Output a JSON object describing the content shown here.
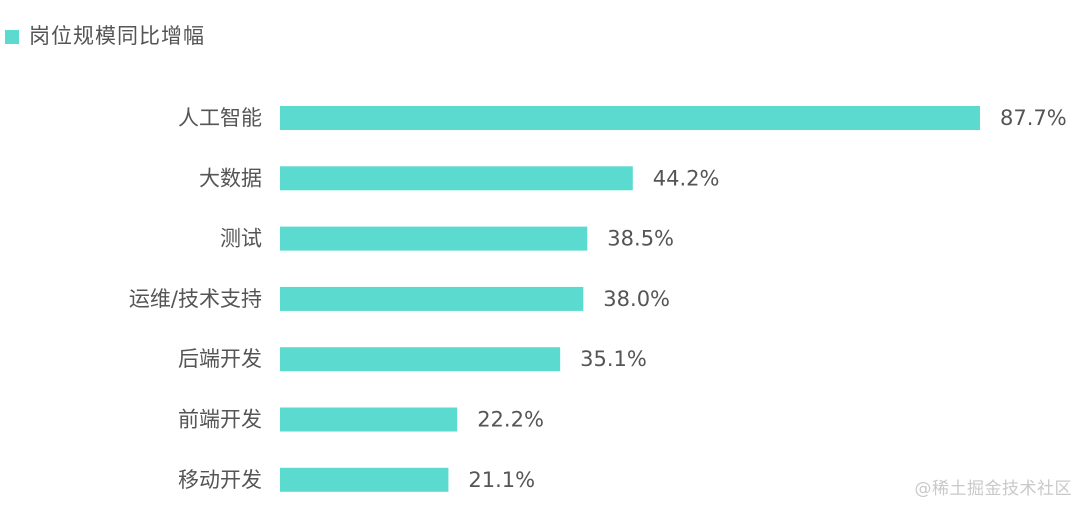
{
  "chart_data": {
    "type": "bar",
    "orientation": "horizontal",
    "categories": [
      "人工智能",
      "大数据",
      "测试",
      "运维/技术支持",
      "后端开发",
      "前端开发",
      "移动开发"
    ],
    "series": [
      {
        "name": "岗位规模同比增幅",
        "values": [
          87.7,
          44.2,
          38.5,
          38.0,
          35.1,
          22.2,
          21.1
        ],
        "labels": [
          "87.7%",
          "44.2%",
          "38.5%",
          "38.0%",
          "35.1%",
          "22.2%",
          "21.1%"
        ]
      }
    ],
    "value_unit": "%",
    "xlim": [
      0,
      87.7
    ],
    "grid": false,
    "axes_visible": false,
    "legend_position": "top-left"
  },
  "colors": {
    "bar": "#5BDBD0",
    "text": "#555555",
    "watermark": "#c9c9c9"
  },
  "watermark": "@稀土掘金技术社区"
}
